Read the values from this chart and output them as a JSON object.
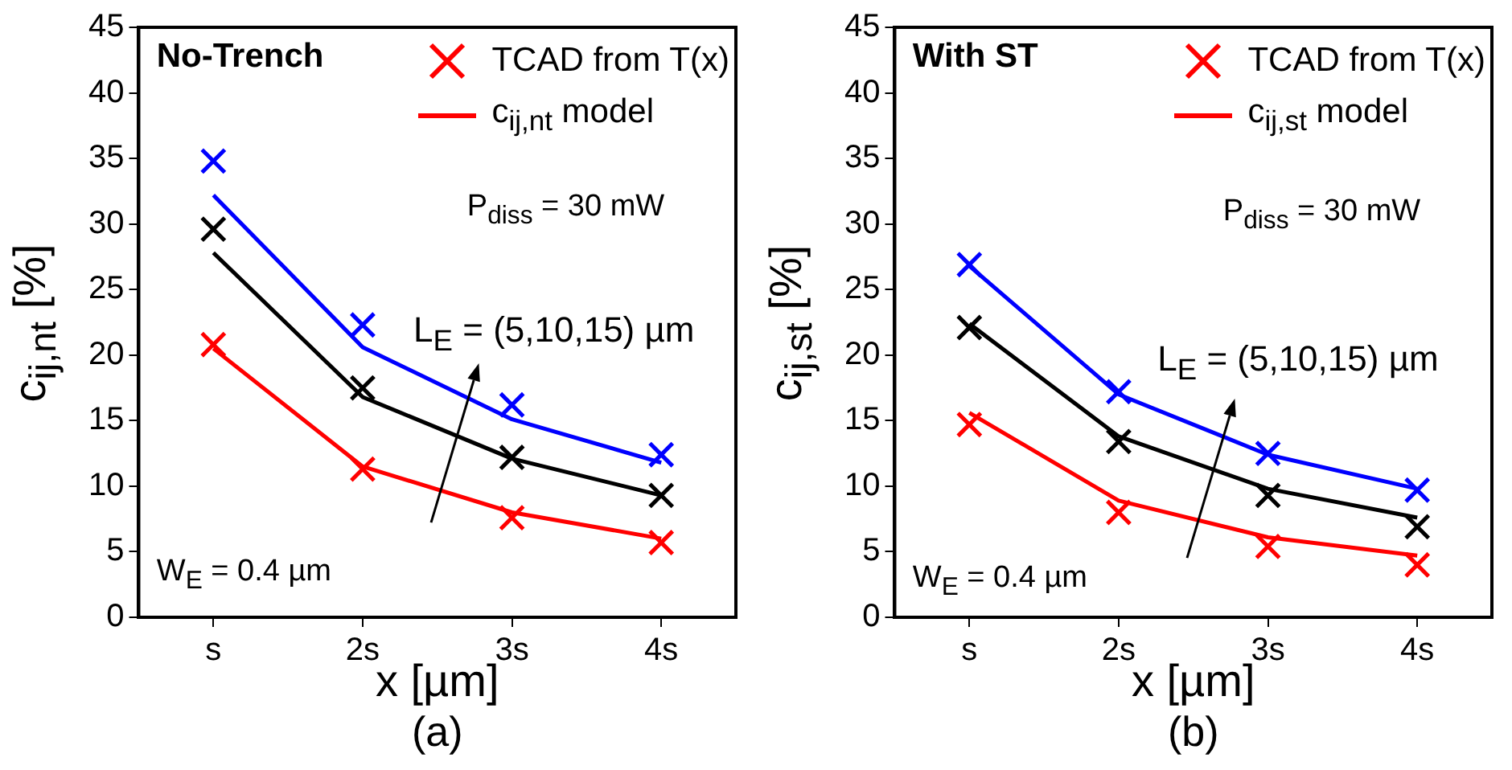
{
  "chart_data": [
    {
      "type": "line",
      "title": "No-Trench",
      "xlabel": "x [µm]",
      "ylabel": "c$_{ij,nt}$ [%]",
      "categories": [
        "s",
        "2s",
        "3s",
        "4s"
      ],
      "ylim": [
        0,
        45
      ],
      "yticks": [
        0,
        5,
        10,
        15,
        20,
        25,
        30,
        35,
        40,
        45
      ],
      "legend": "top right",
      "annotations": [
        "P$_{diss}$ = 30 mW",
        "L$_{E}$ = (5,10,15) µm",
        "W$_{E}$ = 0.4 µm",
        "(a)"
      ],
      "series": [
        {
          "name": "TCAD from T(x)",
          "type": "scatter",
          "marker": "cross",
          "color": "#ff0000",
          "values": [
            20.8,
            11.3,
            7.6,
            5.7
          ]
        },
        {
          "name": "c$_{ij,nt}$ model",
          "type": "line",
          "marker": "none",
          "color": "#ff0000",
          "values": [
            20.5,
            11.5,
            8.0,
            6.0
          ]
        },
        {
          "type": "scatter",
          "marker": "cross",
          "color": "#000000",
          "values": [
            29.6,
            17.5,
            12.2,
            9.3
          ]
        },
        {
          "type": "line",
          "marker": "none",
          "color": "#000000",
          "values": [
            27.8,
            16.8,
            12.1,
            9.3
          ]
        },
        {
          "type": "scatter",
          "marker": "cross",
          "color": "#0000ff",
          "values": [
            34.8,
            22.3,
            16.2,
            12.4
          ]
        },
        {
          "type": "line",
          "marker": "none",
          "color": "#0000ff",
          "values": [
            32.2,
            20.6,
            15.1,
            11.8
          ]
        }
      ]
    },
    {
      "type": "line",
      "title": "With ST",
      "xlabel": "x [µm]",
      "ylabel": "c$_{ij,st}$ [%]",
      "categories": [
        "s",
        "2s",
        "3s",
        "4s"
      ],
      "ylim": [
        0,
        45
      ],
      "yticks": [
        0,
        5,
        10,
        15,
        20,
        25,
        30,
        35,
        40,
        45
      ],
      "legend": "top right",
      "annotations": [
        "P$_{diss}$ = 30 mW",
        "L$_{E}$ = (5,10,15) µm",
        "W$_{E}$ = 0.4 µm",
        "(b)"
      ],
      "series": [
        {
          "name": "TCAD from T(x)",
          "type": "scatter",
          "marker": "cross",
          "color": "#ff0000",
          "values": [
            14.7,
            8.0,
            5.4,
            4.0
          ]
        },
        {
          "name": "c$_{ij,st}$ model",
          "type": "line",
          "marker": "none",
          "color": "#ff0000",
          "values": [
            15.6,
            8.9,
            6.1,
            4.7
          ]
        },
        {
          "type": "scatter",
          "marker": "cross",
          "color": "#000000",
          "values": [
            22.1,
            13.4,
            9.3,
            6.9
          ]
        },
        {
          "type": "line",
          "marker": "none",
          "color": "#000000",
          "values": [
            22.4,
            13.8,
            9.8,
            7.6
          ]
        },
        {
          "type": "scatter",
          "marker": "cross",
          "color": "#0000ff",
          "values": [
            26.9,
            17.2,
            12.5,
            9.7
          ]
        },
        {
          "type": "line",
          "marker": "none",
          "color": "#0000ff",
          "values": [
            26.8,
            17.0,
            12.4,
            9.8
          ]
        }
      ]
    }
  ]
}
